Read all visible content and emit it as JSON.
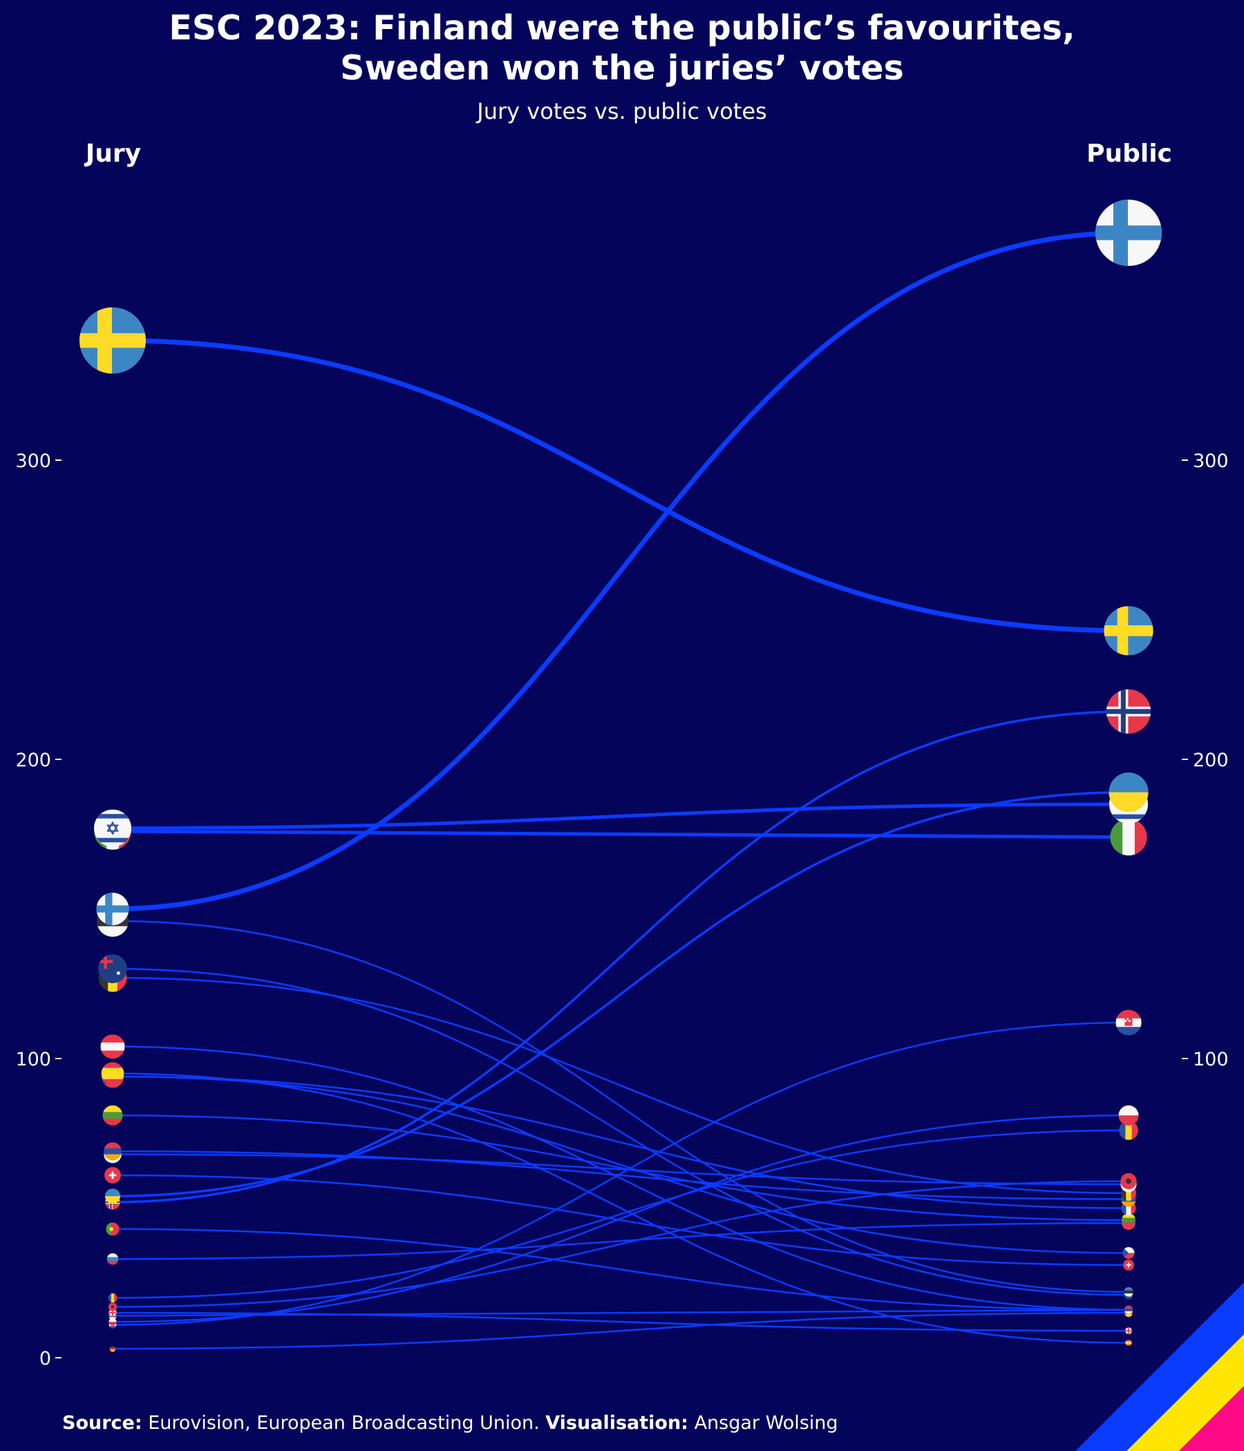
{
  "title_line1": "ESC 2023: Finland were the public’s favourites,",
  "title_line2": "Sweden won the juries’ votes",
  "subtitle": "Jury votes vs. public votes",
  "left_label": "Jury",
  "right_label": "Public",
  "caption": {
    "source_label": "Source:",
    "source_text": " Eurovision, European Broadcasting Union. ",
    "vis_label": "Visualisation:",
    "vis_text": " Ansgar Wolsing"
  },
  "colors": {
    "background": "#03045a",
    "line": "#0a3cff",
    "corner_stripes": [
      "#0a3cff",
      "#ffe600",
      "#ff0a86"
    ]
  },
  "chart_data": {
    "type": "slope",
    "left_axis": "Jury",
    "right_axis": "Public",
    "ylim": [
      0,
      380
    ],
    "yticks": [
      0,
      100,
      200,
      300
    ],
    "series": [
      {
        "name": "Sweden",
        "jury": 340,
        "public": 243,
        "flag": "sweden"
      },
      {
        "name": "Finland",
        "jury": 150,
        "public": 376,
        "flag": "finland"
      },
      {
        "name": "Italy",
        "jury": 176,
        "public": 174,
        "flag": "italy"
      },
      {
        "name": "Israel",
        "jury": 177,
        "public": 185,
        "flag": "israel"
      },
      {
        "name": "Norway",
        "jury": 52,
        "public": 216,
        "flag": "norway"
      },
      {
        "name": "Ukraine",
        "jury": 54,
        "public": 189,
        "flag": "ukraine"
      },
      {
        "name": "Estonia",
        "jury": 146,
        "public": 22,
        "flag": "estonia"
      },
      {
        "name": "Australia",
        "jury": 130,
        "public": 21,
        "flag": "australia"
      },
      {
        "name": "Belgium",
        "jury": 127,
        "public": 55,
        "flag": "belgium"
      },
      {
        "name": "Austria",
        "jury": 104,
        "public": 16,
        "flag": "austria"
      },
      {
        "name": "Spain",
        "jury": 95,
        "public": 5,
        "flag": "spain"
      },
      {
        "name": "Lithuania",
        "jury": 81,
        "public": 46,
        "flag": "lithuania"
      },
      {
        "name": "Cyprus",
        "jury": 68,
        "public": 58,
        "flag": "cyprus"
      },
      {
        "name": "Switzerland",
        "jury": 61,
        "public": 31,
        "flag": "switzerland"
      },
      {
        "name": "Armenia",
        "jury": 69,
        "public": 53,
        "flag": "armenia"
      },
      {
        "name": "France",
        "jury": 94,
        "public": 50,
        "flag": "france"
      },
      {
        "name": "Portugal",
        "jury": 43,
        "public": 16,
        "flag": "portugal"
      },
      {
        "name": "Slovenia",
        "jury": 33,
        "public": 45,
        "flag": "slovenia"
      },
      {
        "name": "Poland",
        "jury": 12,
        "public": 81,
        "flag": "poland"
      },
      {
        "name": "Moldova",
        "jury": 20,
        "public": 76,
        "flag": "moldova"
      },
      {
        "name": "Croatia",
        "jury": 11,
        "public": 112,
        "flag": "croatia"
      },
      {
        "name": "Serbia",
        "jury": 14,
        "public": 16,
        "flag": "serbia"
      },
      {
        "name": "Czechia",
        "jury": 94,
        "public": 35,
        "flag": "czechia"
      },
      {
        "name": "Albania",
        "jury": 17,
        "public": 59,
        "flag": "albania"
      },
      {
        "name": "United Kingdom",
        "jury": 15,
        "public": 9,
        "flag": "uk"
      },
      {
        "name": "Germany",
        "jury": 3,
        "public": 15,
        "flag": "germany"
      }
    ]
  }
}
